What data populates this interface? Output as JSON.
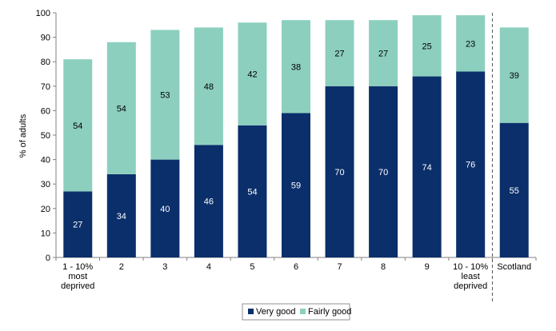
{
  "chart_data": {
    "type": "bar",
    "stacked": true,
    "categories": [
      [
        "1 - 10%",
        "most",
        "deprived"
      ],
      [
        "2"
      ],
      [
        "3"
      ],
      [
        "4"
      ],
      [
        "5"
      ],
      [
        "6"
      ],
      [
        "7"
      ],
      [
        "8"
      ],
      [
        "9"
      ],
      [
        "10 - 10%",
        "least",
        "deprived"
      ],
      [
        "Scotland"
      ]
    ],
    "series": [
      {
        "name": "Very good",
        "color": "#0b2f6b",
        "label_color": "#ffffff",
        "values": [
          27,
          34,
          40,
          46,
          54,
          59,
          70,
          70,
          74,
          76,
          55
        ]
      },
      {
        "name": "Fairly good",
        "color": "#8ccfbf",
        "label_color": "#000000",
        "values": [
          54,
          54,
          53,
          48,
          42,
          38,
          27,
          27,
          25,
          23,
          39
        ]
      }
    ],
    "ylabel": "% of adults",
    "xlabel": "",
    "title": "",
    "ylim": [
      0,
      100
    ],
    "yticks": [
      0,
      10,
      20,
      30,
      40,
      50,
      60,
      70,
      80,
      90,
      100
    ],
    "grid": false,
    "separator_before_category": 10,
    "legend_position": "bottom"
  }
}
